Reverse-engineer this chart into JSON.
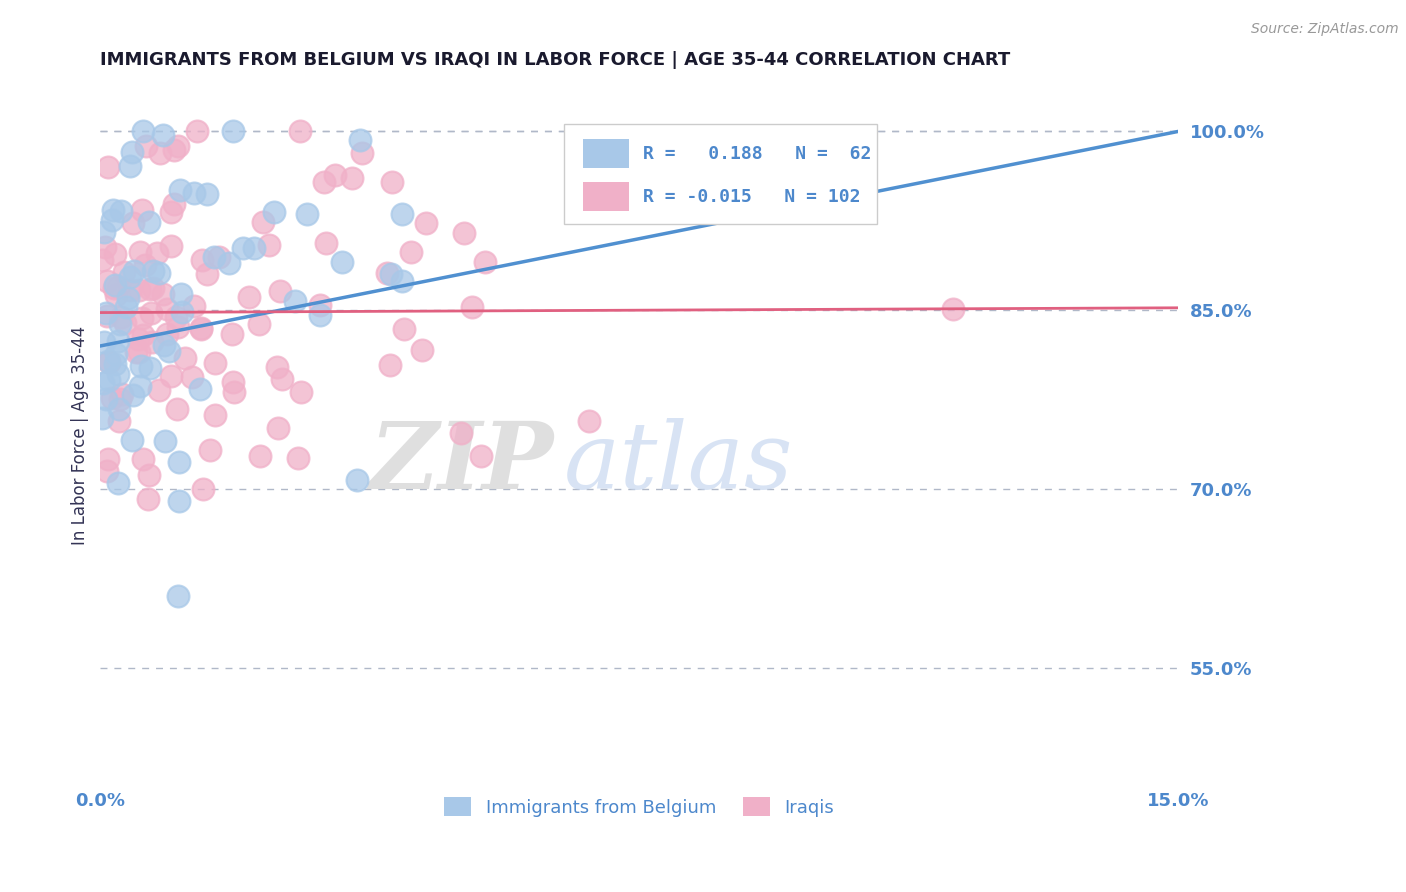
{
  "title": "IMMIGRANTS FROM BELGIUM VS IRAQI IN LABOR FORCE | AGE 35-44 CORRELATION CHART",
  "source": "Source: ZipAtlas.com",
  "ylabel": "In Labor Force | Age 35-44",
  "xmin": 0.0,
  "xmax": 0.15,
  "ymin": 0.455,
  "ymax": 1.035,
  "yticks": [
    0.55,
    0.7,
    0.85,
    1.0
  ],
  "ytick_labels": [
    "55.0%",
    "70.0%",
    "85.0%",
    "100.0%"
  ],
  "xticks": [
    0.0,
    0.15
  ],
  "xtick_labels": [
    "0.0%",
    "15.0%"
  ],
  "belgium_R": 0.188,
  "belgium_N": 62,
  "iraqi_R": -0.015,
  "iraqi_N": 102,
  "belgium_color": "#a8c8e8",
  "iraqi_color": "#f0b0c8",
  "belgium_line_color": "#5090d0",
  "iraqi_line_color": "#e06080",
  "legend_label_belgium": "Immigrants from Belgium",
  "legend_label_iraqi": "Iraqis",
  "background_color": "#ffffff",
  "grid_color": "#b0b8c8",
  "title_color": "#1a1a2e",
  "tick_label_color": "#4d88cc",
  "belgium_seed": 42,
  "iraqi_seed": 77,
  "belgium_line_y0": 0.82,
  "belgium_line_y1": 1.0,
  "iraqi_line_y0": 0.848,
  "iraqi_line_y1": 0.852
}
